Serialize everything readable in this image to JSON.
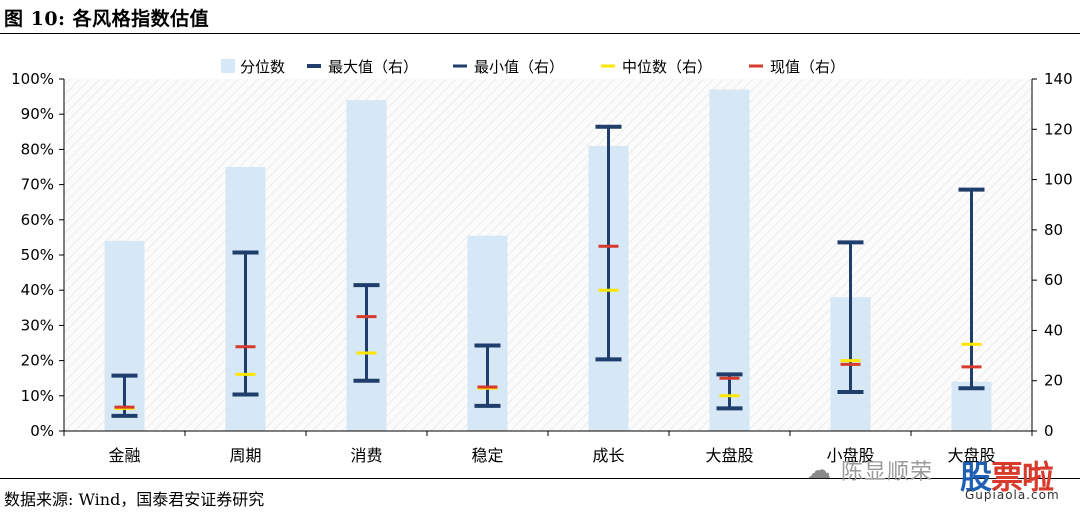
{
  "figure": {
    "title": "图 10:  各风格指数估值",
    "source": "数据来源:    Wind，国泰君安证券研究"
  },
  "watermark": {
    "icon": "wechat-icon",
    "name": "陈显顺荣",
    "brand_1": "股",
    "brand_2": "票",
    "brand_3": "啦",
    "url": "Gupiaola.com"
  },
  "colors": {
    "bar": "#d6e7f6",
    "range": "#1f3e6b",
    "median": "#ffe600",
    "current": "#d63a2c",
    "axis": "#000000"
  },
  "chart_data": {
    "type": "bar",
    "categories": [
      "金融",
      "周期",
      "消费",
      "稳定",
      "成长",
      "大盘股",
      "小盘股",
      "大盘股"
    ],
    "y_left": {
      "min": 0,
      "max": 100,
      "step": 10,
      "unit": "%"
    },
    "y_right": {
      "min": 0,
      "max": 140,
      "step": 20
    },
    "legend_position": "top",
    "legend": [
      {
        "name": "分位数",
        "kind": "bar"
      },
      {
        "name": "最大值（右）",
        "kind": "max"
      },
      {
        "name": "最小值（右）",
        "kind": "min"
      },
      {
        "name": "中位数（右）",
        "kind": "median"
      },
      {
        "name": "现值（右）",
        "kind": "current"
      }
    ],
    "series": [
      {
        "name": "分位数",
        "axis": "left",
        "values": [
          54,
          75,
          94,
          55.5,
          81,
          97,
          38,
          14
        ]
      },
      {
        "name": "最大值（右）",
        "axis": "right",
        "values": [
          22,
          71,
          58,
          34,
          121,
          22.5,
          75,
          96
        ]
      },
      {
        "name": "最小值（右）",
        "axis": "right",
        "values": [
          6,
          14.5,
          20,
          10,
          28.5,
          9,
          15.5,
          17
        ]
      },
      {
        "name": "中位数（右）",
        "axis": "right",
        "values": [
          9,
          22.5,
          31,
          17,
          56,
          14,
          28,
          34.5
        ]
      },
      {
        "name": "现值（右）",
        "axis": "right",
        "values": [
          9.5,
          33.5,
          45.5,
          17.5,
          73.5,
          21,
          26.5,
          25.5
        ]
      }
    ]
  }
}
